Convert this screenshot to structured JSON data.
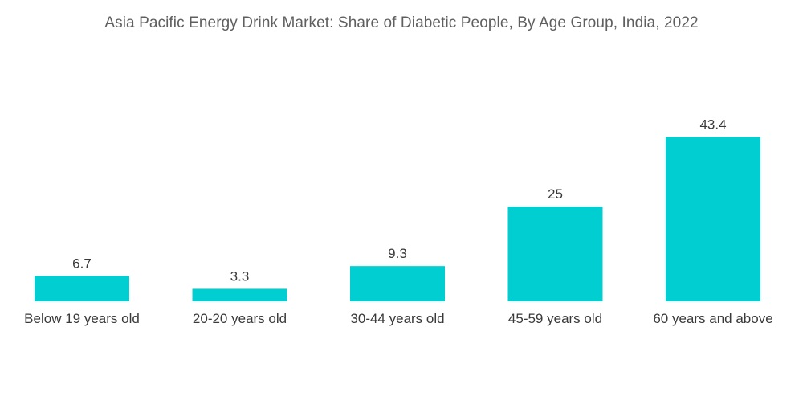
{
  "chart_data": {
    "type": "bar",
    "title": "Asia Pacific Energy Drink Market: Share of Diabetic People, By Age Group, India, 2022",
    "categories": [
      "Below 19 years old",
      "20-20 years old",
      "30-44 years old",
      "45-59 years old",
      "60 years and above"
    ],
    "values": [
      6.7,
      3.3,
      9.3,
      25,
      43.4
    ],
    "value_labels": [
      "6.7",
      "3.3",
      "9.3",
      "25",
      "43.4"
    ],
    "xlabel": "",
    "ylabel": "",
    "ylim": [
      0,
      50
    ],
    "grid": false,
    "legend": "none",
    "bar_color": "#00ced1"
  }
}
